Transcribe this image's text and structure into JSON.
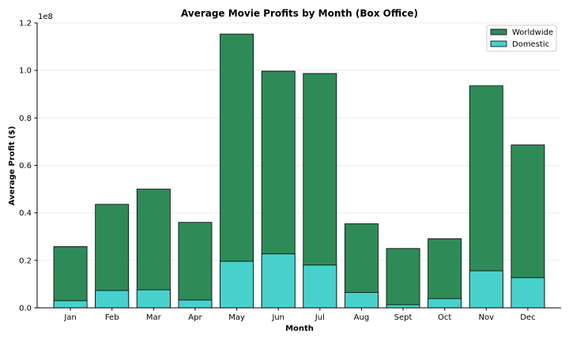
{
  "chart_data": {
    "type": "bar",
    "title": "Average Movie Profits by Month (Box Office)",
    "xlabel": "Month",
    "ylabel": "Average Profit ($)",
    "y_offset_label": "1e8",
    "y_scale": 100000000,
    "ylim": [
      0,
      120000000
    ],
    "yticks": [
      0,
      20000000,
      40000000,
      60000000,
      80000000,
      100000000,
      120000000
    ],
    "ytick_labels": [
      "0.0",
      "0.2",
      "0.4",
      "0.6",
      "0.8",
      "1.0",
      "1.2"
    ],
    "grid": true,
    "legend_position": "top-right",
    "categories": [
      "Jan",
      "Feb",
      "Mar",
      "Apr",
      "May",
      "Jun",
      "Jul",
      "Aug",
      "Sept",
      "Oct",
      "Nov",
      "Dec"
    ],
    "series": [
      {
        "name": "Worldwide",
        "color": "#2e8b57",
        "values": [
          25800000,
          43600000,
          50000000,
          36000000,
          115300000,
          99700000,
          98700000,
          35400000,
          25000000,
          29100000,
          93500000,
          68600000
        ]
      },
      {
        "name": "Domestic",
        "color": "#48d1cc",
        "values": [
          3000000,
          7300000,
          7600000,
          3300000,
          19600000,
          22700000,
          18000000,
          6500000,
          1300000,
          3900000,
          15600000,
          12700000
        ]
      }
    ]
  }
}
